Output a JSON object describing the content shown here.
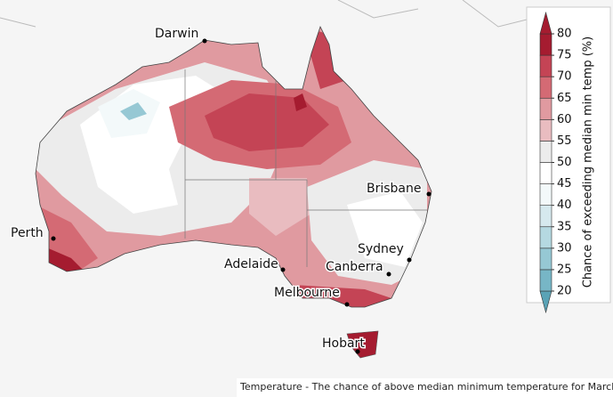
{
  "map": {
    "cities": [
      {
        "name": "Darwin"
      },
      {
        "name": "Perth"
      },
      {
        "name": "Brisbane"
      },
      {
        "name": "Sydney"
      },
      {
        "name": "Adelaide"
      },
      {
        "name": "Canberra"
      },
      {
        "name": "Melbourne"
      },
      {
        "name": "Hobart"
      }
    ],
    "legend": {
      "title": "Chance of exceeding median min temp (%)",
      "ticks": [
        20,
        25,
        30,
        35,
        40,
        45,
        50,
        55,
        60,
        65,
        70,
        75,
        80
      ],
      "colors": [
        "#5aa3b6",
        "#77b6c6",
        "#96c8d4",
        "#b5d9e1",
        "#d6e9ee",
        "#f3f9fa",
        "#ffffff",
        "#ececec",
        "#e9bcc0",
        "#e09aa0",
        "#d46a74",
        "#c44455",
        "#a51c30"
      ]
    },
    "caption": "Temperature - The chance of above median minimum temperature for March to May"
  }
}
